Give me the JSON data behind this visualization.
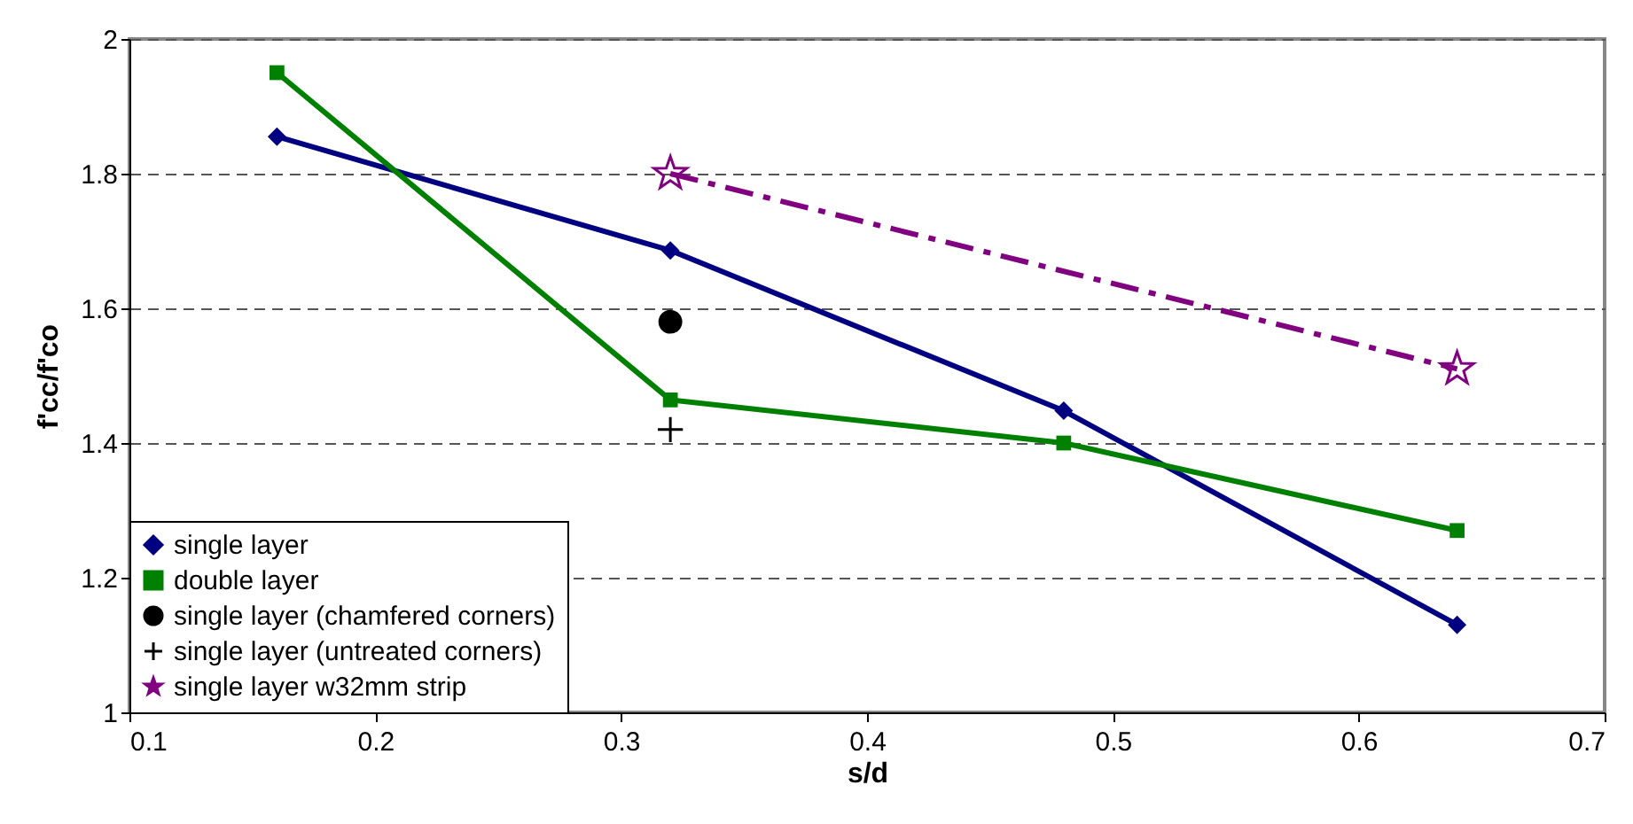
{
  "chart_data": {
    "type": "line",
    "xlabel": "s/d",
    "ylabel": "f'cc/f'co",
    "x": [
      0.16,
      0.32,
      0.48,
      0.64
    ],
    "series": [
      {
        "name": "single layer",
        "color": "#000080",
        "marker": "diamond",
        "line_style": "solid",
        "values": [
          1.855,
          1.686,
          1.448,
          1.13
        ]
      },
      {
        "name": "double layer",
        "color": "#008000",
        "marker": "square",
        "line_style": "solid",
        "values": [
          1.95,
          1.464,
          1.4,
          1.27
        ]
      },
      {
        "name": "single layer (chamfered corners)",
        "type": "scatter",
        "color": "#000000",
        "marker": "circle",
        "values": [
          null,
          1.58,
          null,
          null
        ]
      },
      {
        "name": "single layer (untreated corners)",
        "type": "scatter",
        "color": "#000000",
        "marker": "cross",
        "values": [
          null,
          1.42,
          null,
          null
        ]
      },
      {
        "name": "single layer w32mm strip",
        "color": "#800080",
        "marker": "star",
        "line_style": "dashed",
        "values": [
          null,
          1.8,
          null,
          1.51
        ]
      }
    ],
    "xlim": [
      0.1,
      0.7
    ],
    "xticks": [
      0.1,
      0.2,
      0.3,
      0.4,
      0.5,
      0.6,
      0.7
    ],
    "ylim": [
      1,
      2
    ],
    "yticks": [
      1,
      1.2,
      1.4,
      1.6,
      1.8,
      2
    ],
    "grid": "y",
    "legend": "bottom left"
  }
}
